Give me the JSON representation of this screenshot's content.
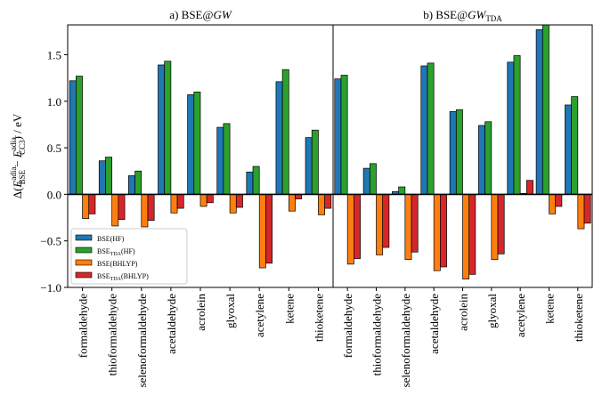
{
  "chart_data": [
    {
      "type": "bar",
      "title": [
        "a) BSE@",
        "GW"
      ],
      "ylabel": [
        "Δ(",
        "E",
        "adia.",
        "BSE",
        " − ",
        "E",
        "adia.",
        "CC3",
        ") / eV"
      ],
      "categories": [
        "formaldehyde",
        "thioformaldehyde",
        "selenoformaldehyde",
        "acetaldehyde",
        "acrolein",
        "glyoxal",
        "acetylene",
        "ketene",
        "thioketene"
      ],
      "series": [
        {
          "name": [
            "BSE(HF)"
          ],
          "color": "#1f77b4",
          "values": [
            1.22,
            0.36,
            0.2,
            1.39,
            1.07,
            0.72,
            0.24,
            1.21,
            0.61
          ]
        },
        {
          "name": [
            "BSE",
            "TDA",
            "(HF)"
          ],
          "color": "#2ca02c",
          "values": [
            1.27,
            0.4,
            0.25,
            1.43,
            1.1,
            0.76,
            0.3,
            1.34,
            0.69
          ]
        },
        {
          "name": [
            "BSE(BHLYP)"
          ],
          "color": "#ff7f0e",
          "values": [
            -0.26,
            -0.34,
            -0.35,
            -0.2,
            -0.13,
            -0.2,
            -0.79,
            -0.18,
            -0.22
          ]
        },
        {
          "name": [
            "BSE",
            "TDA",
            "(BHLYP)"
          ],
          "color": "#d62728",
          "values": [
            -0.21,
            -0.27,
            -0.28,
            -0.15,
            -0.09,
            -0.14,
            -0.74,
            -0.05,
            -0.15
          ]
        }
      ],
      "ylim": [
        -1.0,
        1.82
      ],
      "yticks": [
        {
          "value": -1.0,
          "label": "−1.0"
        },
        {
          "value": -0.5,
          "label": "−0.5"
        },
        {
          "value": 0.0,
          "label": "0.0"
        },
        {
          "value": 0.5,
          "label": "0.5"
        },
        {
          "value": 1.0,
          "label": "1.0"
        },
        {
          "value": 1.5,
          "label": "1.5"
        }
      ],
      "legend": "lower left"
    },
    {
      "type": "bar",
      "title": [
        "b) BSE@",
        "GW",
        "TDA"
      ],
      "categories": [
        "formaldehyde",
        "thioformaldehyde",
        "selenoformaldehyde",
        "acetaldehyde",
        "acrolein",
        "glyoxal",
        "acetylene",
        "ketene",
        "thioketene"
      ],
      "series": [
        {
          "color": "#1f77b4",
          "values": [
            1.24,
            0.28,
            0.03,
            1.38,
            0.89,
            0.74,
            1.42,
            1.77,
            0.96
          ]
        },
        {
          "color": "#2ca02c",
          "values": [
            1.28,
            0.33,
            0.08,
            1.41,
            0.91,
            0.78,
            1.49,
            1.82,
            1.05
          ]
        },
        {
          "color": "#ff7f0e",
          "values": [
            -0.75,
            -0.65,
            -0.7,
            -0.82,
            -0.91,
            -0.7,
            0.01,
            -0.21,
            -0.37
          ]
        },
        {
          "color": "#d62728",
          "values": [
            -0.69,
            -0.57,
            -0.62,
            -0.78,
            -0.86,
            -0.64,
            0.15,
            -0.13,
            -0.31
          ]
        }
      ],
      "ylim": [
        -1.0,
        1.82
      ]
    }
  ]
}
